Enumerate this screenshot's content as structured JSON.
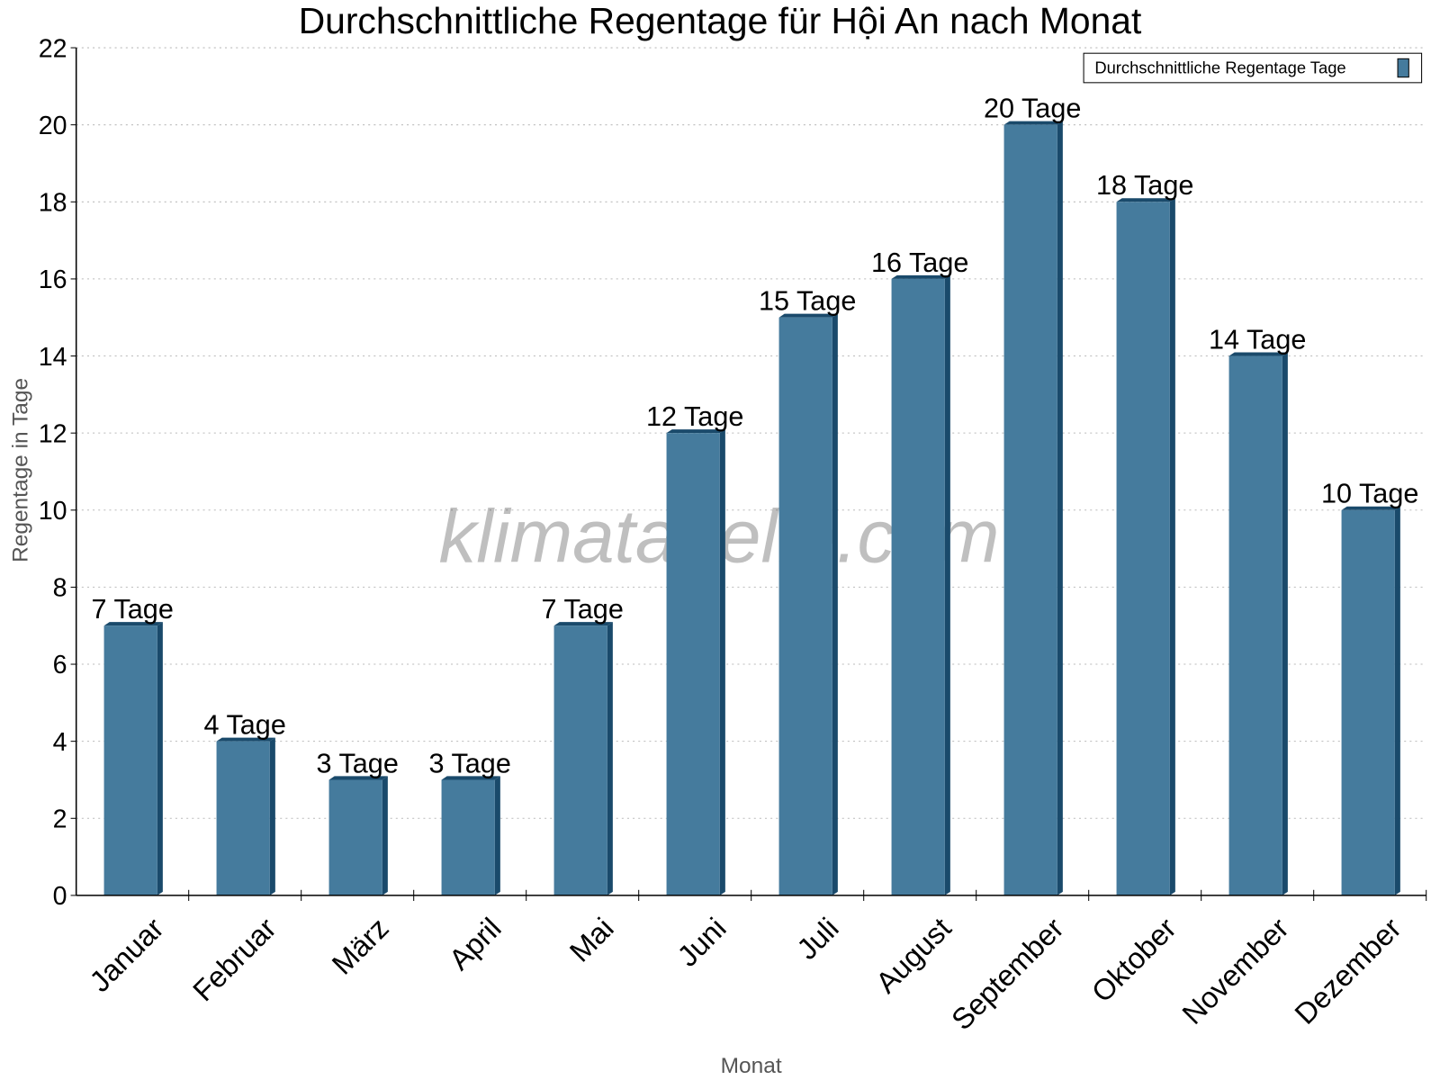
{
  "chart_data": {
    "type": "bar",
    "title": "Durchschnittliche Regentage für Hội An nach Monat",
    "xlabel": "Monat",
    "ylabel": "Regentage in Tage",
    "ylim": [
      0,
      22
    ],
    "yticks": [
      0,
      2,
      4,
      6,
      8,
      10,
      12,
      14,
      16,
      18,
      20,
      22
    ],
    "grid": true,
    "legend_position": "top-right",
    "categories": [
      "Januar",
      "Februar",
      "März",
      "April",
      "Mai",
      "Juni",
      "Juli",
      "August",
      "September",
      "Oktober",
      "November",
      "Dezember"
    ],
    "series": [
      {
        "name": "Durchschnittliche Regentage Tage",
        "values": [
          7,
          4,
          3,
          3,
          7,
          12,
          15,
          16,
          20,
          18,
          14,
          10
        ],
        "data_labels": [
          "7 Tage",
          "4 Tage",
          "3 Tage",
          "3 Tage",
          "7 Tage",
          "12 Tage",
          "15 Tage",
          "16 Tage",
          "20 Tage",
          "18 Tage",
          "14 Tage",
          "10 Tage"
        ],
        "color": "#457b9d",
        "side_color": "#1a4a6b"
      }
    ],
    "watermark": "klimatabelle.com"
  }
}
